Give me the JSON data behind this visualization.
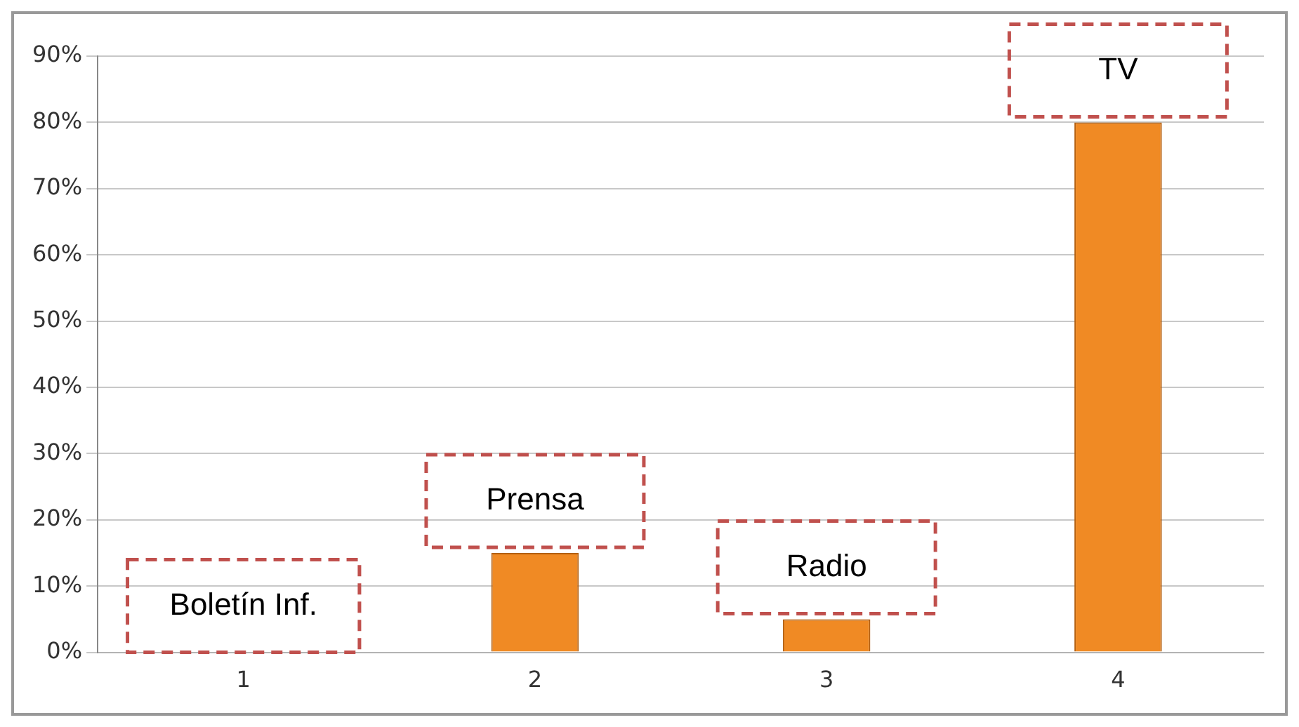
{
  "chart_data": {
    "type": "bar",
    "categories": [
      "1",
      "2",
      "3",
      "4"
    ],
    "values": [
      0,
      15,
      5,
      80
    ],
    "color": "#f08a24",
    "ylim": [
      0,
      90
    ],
    "yticks": [
      {
        "value": 0,
        "label": "0%"
      },
      {
        "value": 10,
        "label": "10%"
      },
      {
        "value": 20,
        "label": "20%"
      },
      {
        "value": 30,
        "label": "30%"
      },
      {
        "value": 40,
        "label": "40%"
      },
      {
        "value": 50,
        "label": "50%"
      },
      {
        "value": 60,
        "label": "60%"
      },
      {
        "value": 70,
        "label": "70%"
      },
      {
        "value": 80,
        "label": "80%"
      },
      {
        "value": 90,
        "label": "90%"
      }
    ],
    "grid": "y",
    "annotations": [
      "Boletín Inf.",
      "Prensa",
      "Radio",
      "TV"
    ]
  }
}
